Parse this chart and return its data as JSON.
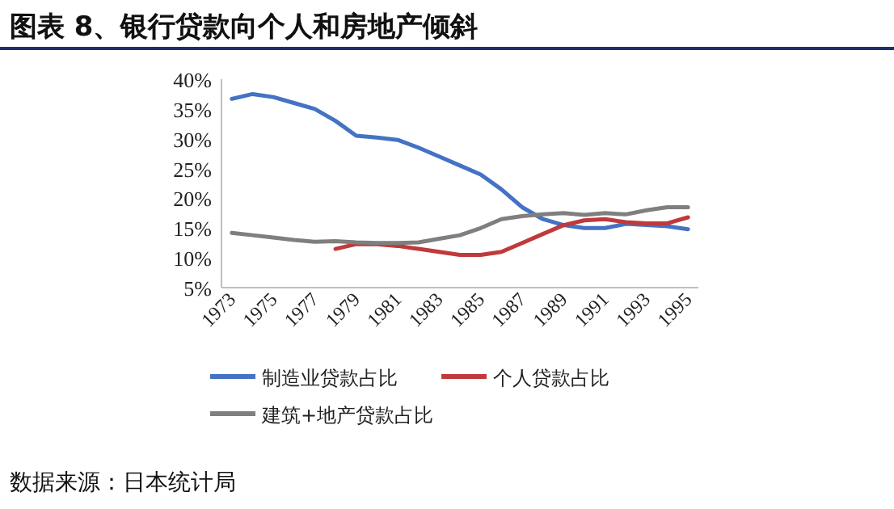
{
  "chart_data": {
    "type": "line",
    "title": "图表 8、银行贷款向个人和房地产倾斜",
    "categories": [
      "1973",
      null,
      "1975",
      null,
      "1977",
      null,
      "1979",
      null,
      "1981",
      null,
      "1983",
      null,
      "1985",
      null,
      "1987",
      null,
      "1989",
      null,
      "1991",
      null,
      "1993",
      null,
      "1995"
    ],
    "series": [
      {
        "name": "制造业贷款占比",
        "color": "#4472c4",
        "values": [
          36.7,
          37.5,
          37,
          36,
          35,
          33,
          30.5,
          30.2,
          29.8,
          28.5,
          27,
          25.5,
          24,
          21.5,
          18.5,
          16.5,
          15.5,
          15,
          15,
          15.7,
          15.5,
          15.3,
          14.8
        ]
      },
      {
        "name": "个人贷款占比",
        "color": "#c0393b",
        "values": [
          null,
          null,
          null,
          null,
          null,
          11.5,
          12.3,
          12.3,
          12,
          11.5,
          11,
          10.5,
          10.5,
          11,
          12.5,
          14,
          15.5,
          16.3,
          16.5,
          16,
          15.8,
          15.8,
          16.8
        ]
      },
      {
        "name": "建筑+地产贷款占比",
        "color": "#7f7f7f",
        "values": [
          14.2,
          13.8,
          13.4,
          13,
          12.7,
          12.8,
          12.6,
          12.5,
          12.5,
          12.6,
          13.2,
          13.8,
          15,
          16.5,
          17,
          17.3,
          17.5,
          17.2,
          17.5,
          17.3,
          18,
          18.5,
          18.5
        ]
      }
    ],
    "ylim": [
      5,
      40
    ],
    "yticks": [
      {
        "value": 5,
        "label": "5%"
      },
      {
        "value": 10,
        "label": "10%"
      },
      {
        "value": 15,
        "label": "15%"
      },
      {
        "value": 20,
        "label": "20%"
      },
      {
        "value": 25,
        "label": "25%"
      },
      {
        "value": 30,
        "label": "30%"
      },
      {
        "value": 35,
        "label": "35%"
      },
      {
        "value": 40,
        "label": "40%"
      }
    ],
    "grid": false,
    "legend": "bottom",
    "marker": "none",
    "line_style": "solid",
    "annotations": [
      "数据来源：日本统计局"
    ]
  }
}
